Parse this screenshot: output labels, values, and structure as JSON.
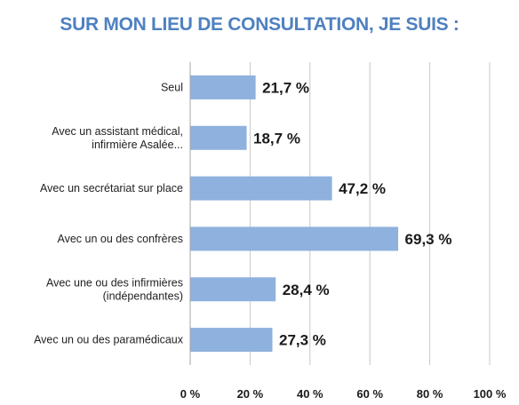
{
  "chart_data": {
    "type": "bar",
    "orientation": "horizontal",
    "title": "SUR MON LIEU DE CONSULTATION, JE SUIS :",
    "categories": [
      [
        "Seul"
      ],
      [
        "Avec un assistant médical,",
        "infirmière Asalée..."
      ],
      [
        "Avec un secrétariat sur place"
      ],
      [
        "Avec un ou des confrères"
      ],
      [
        "Avec une ou des infirmières",
        "(indépendantes)"
      ],
      [
        "Avec un ou des paramédicaux"
      ]
    ],
    "values": [
      21.7,
      18.7,
      47.2,
      69.3,
      28.4,
      27.3
    ],
    "value_labels": [
      "21,7 %",
      "18,7 %",
      "47,2 %",
      "69,3 %",
      "28,4 %",
      "27,3 %"
    ],
    "x_ticks": [
      0,
      20,
      40,
      60,
      80,
      100
    ],
    "x_tick_labels": [
      "0 %",
      "20 %",
      "40 %",
      "60 %",
      "80 %",
      "100 %"
    ],
    "xlim": [
      0,
      100
    ],
    "grid": "vertical",
    "bar_color": "#8eb1de",
    "title_color": "#4f81c0"
  }
}
